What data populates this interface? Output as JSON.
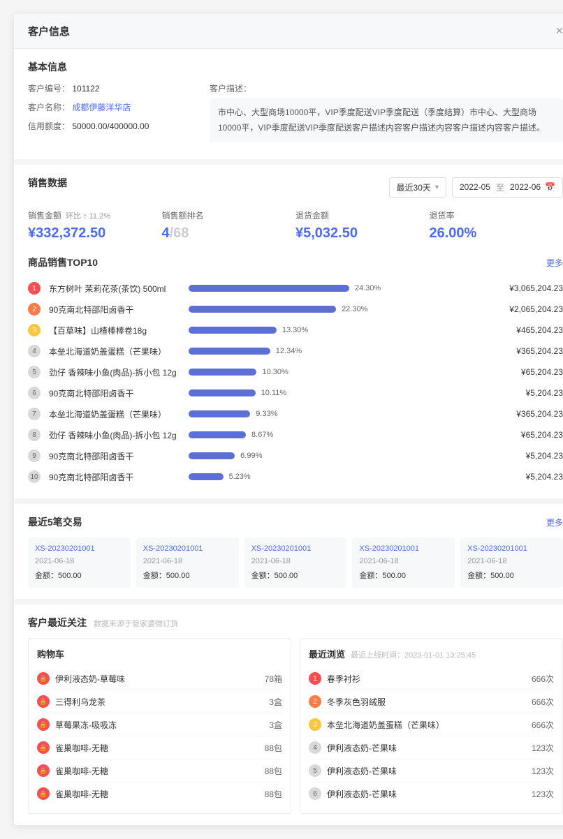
{
  "header": {
    "title": "客户信息"
  },
  "basic": {
    "section_title": "基本信息",
    "id_label": "客户编号：",
    "id_value": "101122",
    "name_label": "客户名称：",
    "name_value": "成都伊藤洋华店",
    "credit_label": "信用额度：",
    "credit_value": "50000.00/400000.00",
    "desc_label": "客户描述：",
    "desc_text": "市中心、大型商场10000平，VIP季度配送VIP季度配送（季度结算）市中心、大型商场10000平，VIP季度配送VIP季度配送客户描述内容客户描述内容客户描述内容客户描述。"
  },
  "sales": {
    "section_title": "销售数据",
    "range_label": "最近30天",
    "date_from": "2022-05",
    "date_sep": "至",
    "date_to": "2022-06",
    "metrics": [
      {
        "label": "销售金额",
        "sub_prefix": "环比",
        "sub_arrow": "↑",
        "sub_value": "11.2%",
        "value": "¥332,372.50"
      },
      {
        "label": "销售额排名",
        "value_main": "4",
        "value_dim": "/68"
      },
      {
        "label": "退货金额",
        "value": "¥5,032.50"
      },
      {
        "label": "退货率",
        "value": "26.00%"
      }
    ]
  },
  "top10": {
    "title": "商品销售TOP10",
    "more": "更多",
    "bar_color": "#5b6fd6",
    "max_pct": 24.3,
    "rank_colors": [
      "#ff4d4f",
      "#ff7a45",
      "#ffc53d",
      "#d9d9d9",
      "#d9d9d9",
      "#d9d9d9",
      "#d9d9d9",
      "#d9d9d9",
      "#d9d9d9",
      "#d9d9d9"
    ],
    "rank_text_colors": [
      "#fff",
      "#fff",
      "#fff",
      "#666",
      "#666",
      "#666",
      "#666",
      "#666",
      "#666",
      "#666"
    ],
    "rows": [
      {
        "name": "东方树叶 茉莉花茶(茶饮) 500ml",
        "pct": 24.3,
        "amount": "¥3,065,204.23"
      },
      {
        "name": "90克南北特邵阳卤香干",
        "pct": 22.3,
        "amount": "¥2,065,204.23"
      },
      {
        "name": "【百草味】山楂棒棒卷18g",
        "pct": 13.3,
        "amount": "¥465,204.23"
      },
      {
        "name": "本垒北海道奶盖蛋糕（芒果味）",
        "pct": 12.34,
        "amount": "¥365,204.23"
      },
      {
        "name": "劲仔 香辣味小鱼(肉品)-拆小包 12g",
        "pct": 10.3,
        "amount": "¥65,204.23"
      },
      {
        "name": "90克南北特邵阳卤香干",
        "pct": 10.11,
        "amount": "¥5,204.23"
      },
      {
        "name": "本垒北海道奶盖蛋糕（芒果味）",
        "pct": 9.33,
        "amount": "¥365,204.23"
      },
      {
        "name": "劲仔 香辣味小鱼(肉品)-拆小包 12g",
        "pct": 8.67,
        "amount": "¥65,204.23"
      },
      {
        "name": "90克南北特邵阳卤香干",
        "pct": 6.99,
        "amount": "¥5,204.23"
      },
      {
        "name": "90克南北特邵阳卤香干",
        "pct": 5.23,
        "amount": "¥5,204.23"
      }
    ]
  },
  "trans": {
    "title": "最近5笔交易",
    "more": "更多",
    "amt_label": "金额：",
    "cards": [
      {
        "id": "XS-20230201001",
        "date": "2021-06-18",
        "amt": "500.00"
      },
      {
        "id": "XS-20230201001",
        "date": "2021-06-18",
        "amt": "500.00"
      },
      {
        "id": "XS-20230201001",
        "date": "2021-06-18",
        "amt": "500.00"
      },
      {
        "id": "XS-20230201001",
        "date": "2021-06-18",
        "amt": "500.00"
      },
      {
        "id": "XS-20230201001",
        "date": "2021-06-18",
        "amt": "500.00"
      }
    ]
  },
  "focus": {
    "title": "客户最近关注",
    "note": "数据来源于管家婆微订货",
    "cart": {
      "title": "购物车",
      "icon_color": "#ff4d4f",
      "icon_glyph": "🔒",
      "items": [
        {
          "name": "伊利液态奶-草莓味",
          "qty": "78箱"
        },
        {
          "name": "三得利乌龙茶",
          "qty": "3盒"
        },
        {
          "name": "草莓果冻-吸吸冻",
          "qty": "3盒"
        },
        {
          "name": "雀巢咖啡-无糖",
          "qty": "88包"
        },
        {
          "name": "雀巢咖啡-无糖",
          "qty": "88包"
        },
        {
          "name": "雀巢咖啡-无糖",
          "qty": "88包"
        }
      ]
    },
    "browse": {
      "title": "最近浏览",
      "online_label": "最近上线时间：",
      "online_time": "2023-01-01 13:25:45",
      "rank_colors": [
        "#ff4d4f",
        "#ff7a45",
        "#ffc53d",
        "#d9d9d9",
        "#d9d9d9",
        "#d9d9d9"
      ],
      "rank_text_colors": [
        "#fff",
        "#fff",
        "#fff",
        "#666",
        "#666",
        "#666"
      ],
      "items": [
        {
          "name": "春季衬衫",
          "qty": "666次"
        },
        {
          "name": "冬季灰色羽绒服",
          "qty": "666次"
        },
        {
          "name": "本垒北海道奶盖蛋糕（芒果味）",
          "qty": "666次"
        },
        {
          "name": "伊利液态奶-芒果味",
          "qty": "123次"
        },
        {
          "name": "伊利液态奶-芒果味",
          "qty": "123次"
        },
        {
          "name": "伊利液态奶-芒果味",
          "qty": "123次"
        }
      ]
    }
  }
}
